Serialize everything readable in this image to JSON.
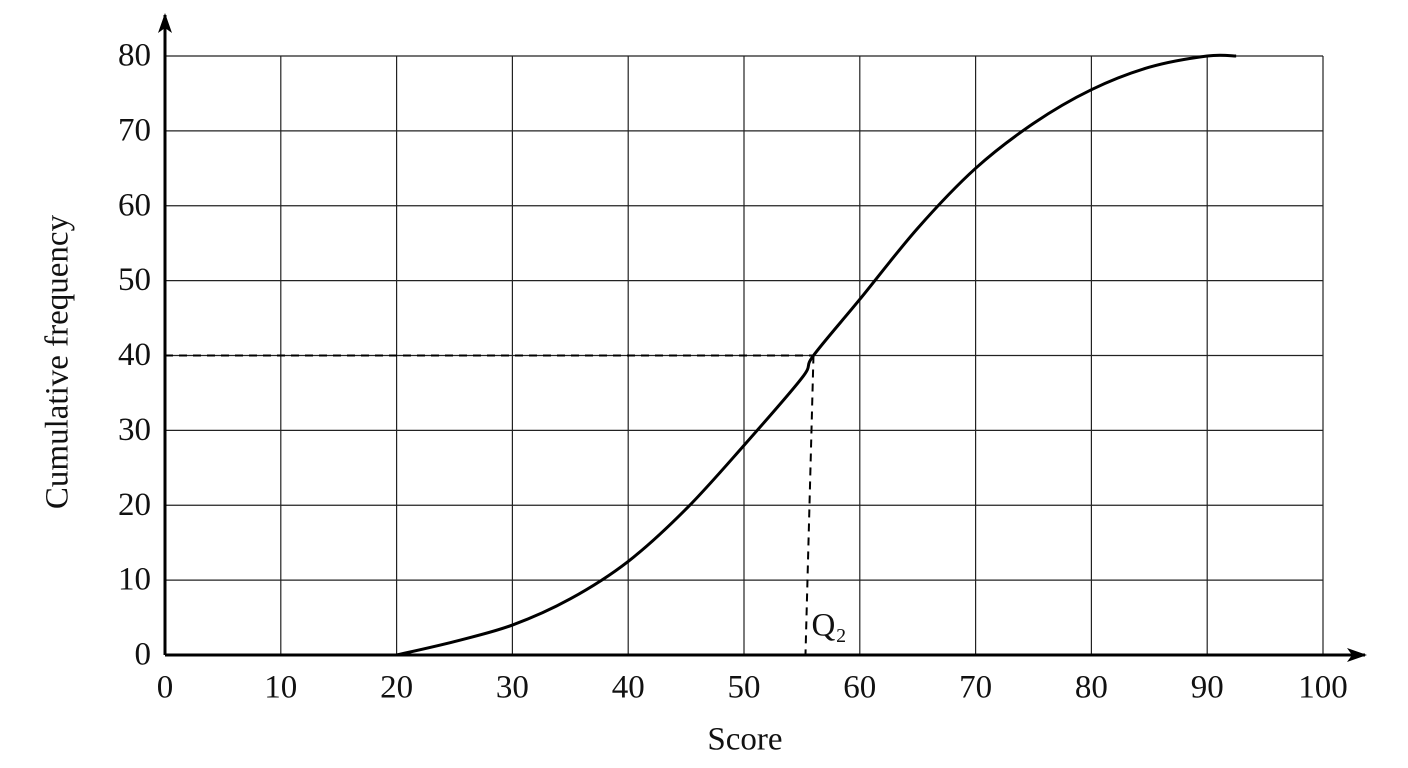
{
  "chart_data": {
    "type": "line",
    "x_label": "Score",
    "y_label": "Cumulative frequency",
    "x": [
      20,
      25,
      30,
      35,
      40,
      45,
      50,
      55,
      56,
      60,
      65,
      70,
      75,
      80,
      85,
      90,
      92.5
    ],
    "values": [
      0,
      1.8,
      4,
      7.5,
      12.5,
      19.5,
      28,
      37,
      40,
      47.5,
      57,
      65,
      71,
      75.5,
      78.5,
      80,
      80
    ],
    "color": "#000000",
    "xlim": [
      0,
      100
    ],
    "ylim": [
      0,
      80
    ],
    "xticks": [
      0,
      10,
      20,
      30,
      40,
      50,
      60,
      70,
      80,
      90,
      100
    ],
    "yticks": [
      0,
      10,
      20,
      30,
      40,
      50,
      60,
      70,
      80
    ],
    "grid": true,
    "annotations": [
      {
        "text": "Q₂",
        "x": 56,
        "y": 40
      }
    ]
  }
}
